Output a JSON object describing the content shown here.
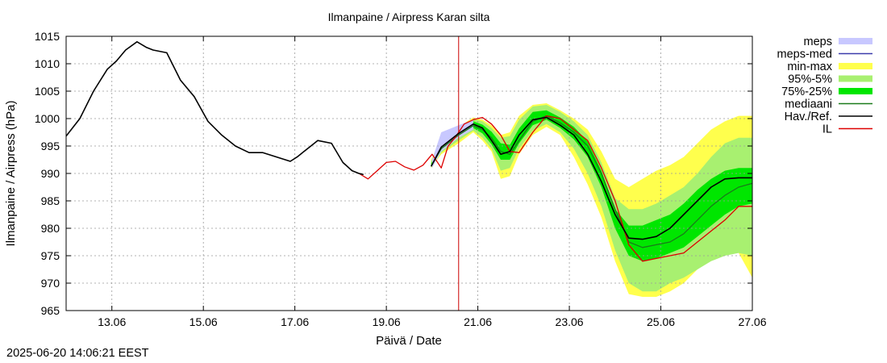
{
  "chart_data": {
    "type": "line",
    "title": "Ilmanpaine / Airpress Karan silta",
    "xlabel": "Päivä / Date",
    "ylabel": "Ilmanpaine / Airpress (hPa)",
    "x_unit": "days since 12.06 00:00",
    "xlim": [
      0,
      15
    ],
    "ylim": [
      965,
      1015
    ],
    "yticks": [
      965,
      970,
      975,
      980,
      985,
      990,
      995,
      1000,
      1005,
      1010,
      1015
    ],
    "xticks": [
      {
        "x": 1,
        "label": "13.06"
      },
      {
        "x": 3,
        "label": "15.06"
      },
      {
        "x": 5,
        "label": "17.06"
      },
      {
        "x": 7,
        "label": "19.06"
      },
      {
        "x": 9,
        "label": "21.06"
      },
      {
        "x": 11,
        "label": "23.06"
      },
      {
        "x": 13,
        "label": "25.06"
      },
      {
        "x": 15,
        "label": "27.06"
      }
    ],
    "grid": true,
    "legend_position": "right",
    "forecast_start_x": 8.58,
    "colors": {
      "meps": "#c8c8ff",
      "meps_med": "#3a3aaa",
      "min_max": "#ffff4d",
      "p95_5": "#a8f070",
      "p75_25": "#00e600",
      "mediaani": "#1a7a1a",
      "hav_ref": "#000000",
      "il": "#dd0000",
      "forecast_line": "#cc0000",
      "grid": "#9a9a9a"
    },
    "legend": [
      {
        "key": "meps",
        "label": "meps",
        "style": "band"
      },
      {
        "key": "meps_med",
        "label": "meps-med",
        "style": "line"
      },
      {
        "key": "min_max",
        "label": "min-max",
        "style": "band"
      },
      {
        "key": "p95_5",
        "label": "95%-5%",
        "style": "band"
      },
      {
        "key": "p75_25",
        "label": "75%-25%",
        "style": "band"
      },
      {
        "key": "mediaani",
        "label": "mediaani",
        "style": "line"
      },
      {
        "key": "hav_ref",
        "label": "Hav./Ref.",
        "style": "line"
      },
      {
        "key": "il",
        "label": "IL",
        "style": "line"
      }
    ],
    "series": [
      {
        "name": "Hav./Ref.",
        "key": "hav_ref",
        "x": [
          0,
          0.3,
          0.6,
          0.9,
          1.1,
          1.3,
          1.55,
          1.75,
          1.9,
          2.2,
          2.5,
          2.8,
          3.1,
          3.4,
          3.7,
          4.0,
          4.3,
          4.6,
          4.9,
          5.05,
          5.2,
          5.5,
          5.8,
          6.05,
          6.25,
          6.4,
          6.5
        ],
        "y": [
          996.8,
          1000.0,
          1005.0,
          1009.0,
          1010.5,
          1012.5,
          1014.0,
          1013.0,
          1012.5,
          1012.0,
          1007.0,
          1004.0,
          999.5,
          997.0,
          995.0,
          993.8,
          993.8,
          993.0,
          992.2,
          993.0,
          994.0,
          996.0,
          995.5,
          992.0,
          990.5,
          990.0,
          989.8
        ]
      },
      {
        "name": "IL",
        "key": "il",
        "x": [
          6.4,
          6.6,
          6.8,
          7.0,
          7.2,
          7.4,
          7.6,
          7.8,
          8.0,
          8.2,
          8.35,
          8.5,
          8.58,
          8.7,
          8.9,
          9.1,
          9.3,
          9.5,
          9.7,
          9.9,
          10.2,
          10.5,
          10.8,
          11.1,
          11.4,
          11.7,
          12.0,
          12.3,
          12.6,
          12.9,
          13.2,
          13.5,
          13.8,
          14.1,
          14.4,
          14.7,
          15.0
        ],
        "y": [
          990.0,
          989.0,
          990.5,
          992.0,
          992.2,
          991.2,
          990.6,
          991.5,
          993.5,
          991.0,
          995.0,
          996.5,
          997.5,
          999.0,
          999.8,
          1000.2,
          999.0,
          997.0,
          994.0,
          993.8,
          997.5,
          1000.5,
          1000.0,
          998.0,
          996.0,
          991.0,
          985.0,
          977.0,
          974.0,
          974.5,
          975.0,
          975.5,
          977.5,
          979.5,
          981.5,
          984.0,
          984.0
        ]
      },
      {
        "name": "mediaani",
        "key": "mediaani",
        "x": [
          7.98,
          8.2,
          8.58,
          8.9,
          9.1,
          9.3,
          9.5,
          9.7,
          9.9,
          10.2,
          10.5,
          10.8,
          11.1,
          11.4,
          11.7,
          12.0,
          12.3,
          12.6,
          12.9,
          13.2,
          13.5,
          13.8,
          14.1,
          14.4,
          14.7,
          15.0
        ],
        "y": [
          991.3,
          994.5,
          997.0,
          998.7,
          998.0,
          996.5,
          994.0,
          993.5,
          996.0,
          999.5,
          1000.5,
          999.2,
          997.5,
          995.0,
          990.0,
          983.5,
          977.5,
          976.5,
          977.0,
          977.5,
          979.0,
          981.5,
          984.0,
          986.0,
          987.5,
          988.2
        ]
      },
      {
        "name": "Hav./Ref. forecast",
        "key": "hav_ref",
        "x": [
          7.98,
          8.2,
          8.58,
          8.9,
          9.1,
          9.3,
          9.5,
          9.7,
          9.9,
          10.2,
          10.5,
          10.8,
          11.1,
          11.4,
          11.7,
          12.0,
          12.3,
          12.6,
          12.9,
          13.2,
          13.5,
          13.8,
          14.1,
          14.4,
          14.7,
          15.0
        ],
        "y": [
          991.3,
          994.8,
          997.3,
          999.0,
          998.3,
          996.0,
          993.5,
          994.0,
          997.0,
          999.8,
          1000.2,
          998.8,
          997.0,
          993.5,
          988.5,
          982.5,
          978.2,
          978.0,
          978.5,
          980.0,
          982.5,
          985.0,
          987.5,
          989.0,
          989.2,
          989.2
        ]
      }
    ],
    "bands": [
      {
        "name": "meps",
        "key": "meps",
        "x": [
          8.0,
          8.2,
          8.58,
          8.9
        ],
        "lower": [
          991.0,
          994.0,
          996.5,
          998.0
        ],
        "upper": [
          992.5,
          997.5,
          998.8,
          999.8
        ]
      },
      {
        "name": "min-max",
        "key": "min_max",
        "x": [
          7.98,
          8.2,
          8.58,
          8.9,
          9.1,
          9.3,
          9.5,
          9.7,
          9.9,
          10.2,
          10.5,
          10.8,
          11.1,
          11.4,
          11.7,
          12.0,
          12.3,
          12.6,
          12.9,
          13.2,
          13.5,
          13.8,
          14.1,
          14.4,
          14.7,
          15.0
        ],
        "lower": [
          991.0,
          993.5,
          995.5,
          997.5,
          996.0,
          994.0,
          989.0,
          989.5,
          993.5,
          997.0,
          998.5,
          997.0,
          993.0,
          988.0,
          982.0,
          974.0,
          968.0,
          967.5,
          967.5,
          968.5,
          970.0,
          972.5,
          975.0,
          977.0,
          975.5,
          971.0
        ],
        "upper": [
          992.5,
          996.5,
          998.5,
          1000.2,
          999.8,
          998.8,
          997.0,
          997.5,
          1000.5,
          1002.5,
          1002.8,
          1001.5,
          1000.0,
          998.0,
          994.0,
          989.0,
          987.5,
          989.0,
          990.5,
          991.5,
          993.0,
          995.5,
          998.0,
          999.5,
          1000.5,
          1000.5
        ]
      },
      {
        "name": "95%-5%",
        "key": "p95_5",
        "x": [
          7.98,
          8.2,
          8.58,
          8.9,
          9.1,
          9.3,
          9.5,
          9.7,
          9.9,
          10.2,
          10.5,
          10.8,
          11.1,
          11.4,
          11.7,
          12.0,
          12.3,
          12.6,
          12.9,
          13.2,
          13.5,
          13.8,
          14.1,
          14.4,
          14.7,
          15.0
        ],
        "lower": [
          991.1,
          993.8,
          996.0,
          997.8,
          996.5,
          994.5,
          990.5,
          991.0,
          994.5,
          997.8,
          999.0,
          997.5,
          994.5,
          990.0,
          984.0,
          976.0,
          970.0,
          968.5,
          968.5,
          970.0,
          971.0,
          972.5,
          974.0,
          975.0,
          975.5,
          975.0
        ],
        "upper": [
          992.2,
          996.2,
          998.2,
          999.9,
          999.5,
          998.3,
          996.5,
          996.8,
          999.8,
          1002.2,
          1002.5,
          1001.2,
          999.5,
          997.0,
          992.0,
          985.5,
          983.5,
          983.5,
          984.5,
          986.0,
          987.5,
          990.0,
          993.0,
          995.5,
          996.5,
          996.5
        ]
      },
      {
        "name": "75%-25%",
        "key": "p75_25",
        "x": [
          7.98,
          8.2,
          8.58,
          8.9,
          9.1,
          9.3,
          9.5,
          9.7,
          9.9,
          10.2,
          10.5,
          10.8,
          11.1,
          11.4,
          11.7,
          12.0,
          12.3,
          12.6,
          12.9,
          13.2,
          13.5,
          13.8,
          14.1,
          14.4,
          14.7,
          15.0
        ],
        "lower": [
          991.2,
          994.2,
          996.6,
          998.3,
          997.3,
          995.3,
          992.5,
          992.5,
          995.5,
          998.8,
          999.8,
          998.3,
          996.2,
          993.0,
          987.5,
          980.0,
          975.0,
          974.0,
          974.5,
          975.5,
          976.5,
          978.5,
          980.5,
          982.5,
          984.0,
          984.5
        ],
        "upper": [
          991.8,
          995.6,
          997.8,
          999.5,
          998.9,
          997.6,
          995.5,
          995.2,
          998.2,
          1001.2,
          1001.5,
          1000.2,
          998.5,
          995.8,
          990.5,
          983.5,
          980.5,
          980.5,
          981.5,
          982.5,
          984.5,
          987.0,
          989.0,
          990.5,
          991.0,
          991.0
        ]
      }
    ]
  },
  "timestamp": "2025-06-20 14:06:21 EEST"
}
